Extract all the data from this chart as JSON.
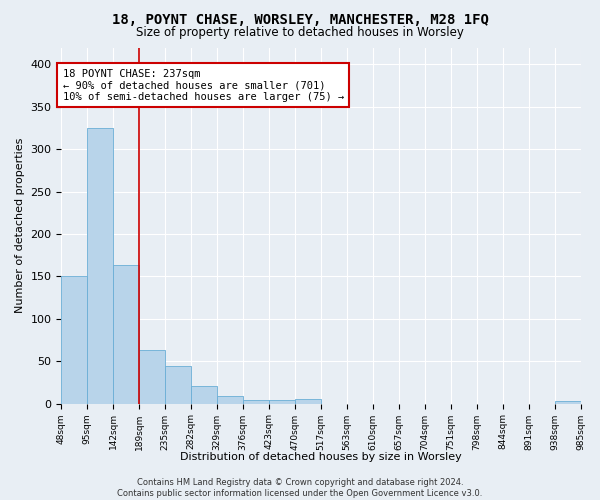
{
  "title": "18, POYNT CHASE, WORSLEY, MANCHESTER, M28 1FQ",
  "subtitle": "Size of property relative to detached houses in Worsley",
  "xlabel": "Distribution of detached houses by size in Worsley",
  "ylabel": "Number of detached properties",
  "bar_heights": [
    150,
    325,
    163,
    63,
    44,
    21,
    9,
    4,
    4,
    5,
    0,
    0,
    0,
    0,
    0,
    0,
    0,
    0,
    0,
    3
  ],
  "x_labels": [
    "48sqm",
    "95sqm",
    "142sqm",
    "189sqm",
    "235sqm",
    "282sqm",
    "329sqm",
    "376sqm",
    "423sqm",
    "470sqm",
    "517sqm",
    "563sqm",
    "610sqm",
    "657sqm",
    "704sqm",
    "751sqm",
    "798sqm",
    "844sqm",
    "891sqm",
    "938sqm",
    "985sqm"
  ],
  "bar_color": "#b8d4ea",
  "bar_edge_color": "#6aaed6",
  "vline_x": 3.0,
  "vline_color": "#cc0000",
  "annotation_text": "18 POYNT CHASE: 237sqm\n← 90% of detached houses are smaller (701)\n10% of semi-detached houses are larger (75) →",
  "annotation_box_color": "#ffffff",
  "annotation_box_edge": "#cc0000",
  "footer_text": "Contains HM Land Registry data © Crown copyright and database right 2024.\nContains public sector information licensed under the Open Government Licence v3.0.",
  "ylim": [
    0,
    420
  ],
  "background_color": "#e8eef4",
  "grid_color": "#ffffff",
  "title_fontsize": 10,
  "subtitle_fontsize": 8.5,
  "ylabel_fontsize": 8,
  "xlabel_fontsize": 8,
  "tick_fontsize": 6.5,
  "footer_fontsize": 6,
  "annot_fontsize": 7.5
}
